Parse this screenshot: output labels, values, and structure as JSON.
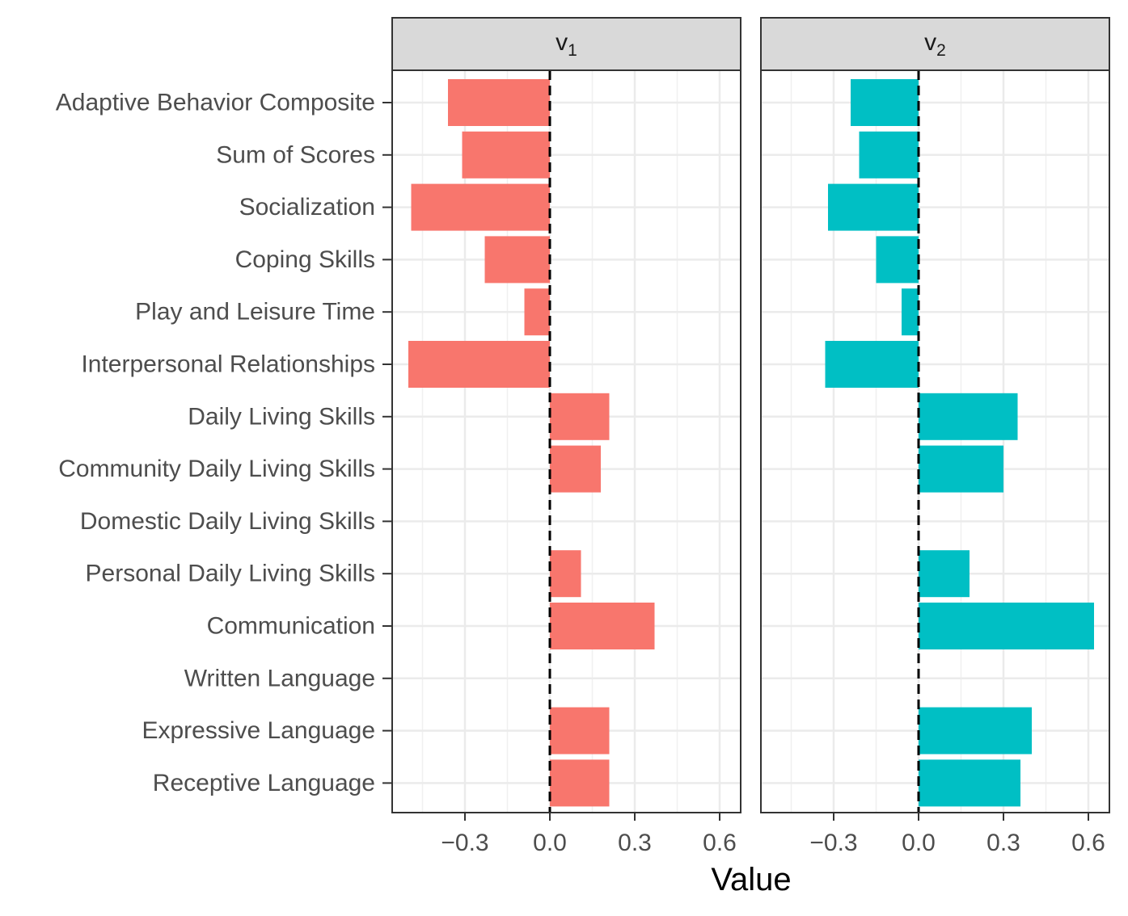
{
  "chart_data": {
    "type": "bar",
    "orientation": "horizontal",
    "xlabel": "Value",
    "ylabel": "",
    "xlim": [
      -0.55,
      0.67
    ],
    "xticks": [
      -0.3,
      0.0,
      0.3,
      0.6
    ],
    "xtick_labels": [
      "−0.3",
      "0.0",
      "0.3",
      "0.6"
    ],
    "reference_line": 0.0,
    "grid": true,
    "categories": [
      "Adaptive Behavior Composite",
      "Sum of Scores",
      "Socialization",
      "Coping Skills",
      "Play and Leisure Time",
      "Interpersonal Relationships",
      "Daily Living Skills",
      "Community Daily Living Skills",
      "Domestic Daily Living Skills",
      "Personal Daily Living Skills",
      "Communication",
      "Written Language",
      "Expressive Language",
      "Receptive Language"
    ],
    "series": [
      {
        "name": "v",
        "subscript": "1",
        "color": "#F8766D",
        "values": [
          -0.36,
          -0.31,
          -0.49,
          -0.23,
          -0.09,
          -0.5,
          0.21,
          0.18,
          0.0,
          0.11,
          0.37,
          0.0,
          0.21,
          0.21
        ]
      },
      {
        "name": "v",
        "subscript": "2",
        "color": "#00BFC4",
        "values": [
          -0.24,
          -0.21,
          -0.32,
          -0.15,
          -0.06,
          -0.33,
          0.35,
          0.3,
          0.0,
          0.18,
          0.62,
          0.0,
          0.4,
          0.36
        ]
      }
    ]
  }
}
